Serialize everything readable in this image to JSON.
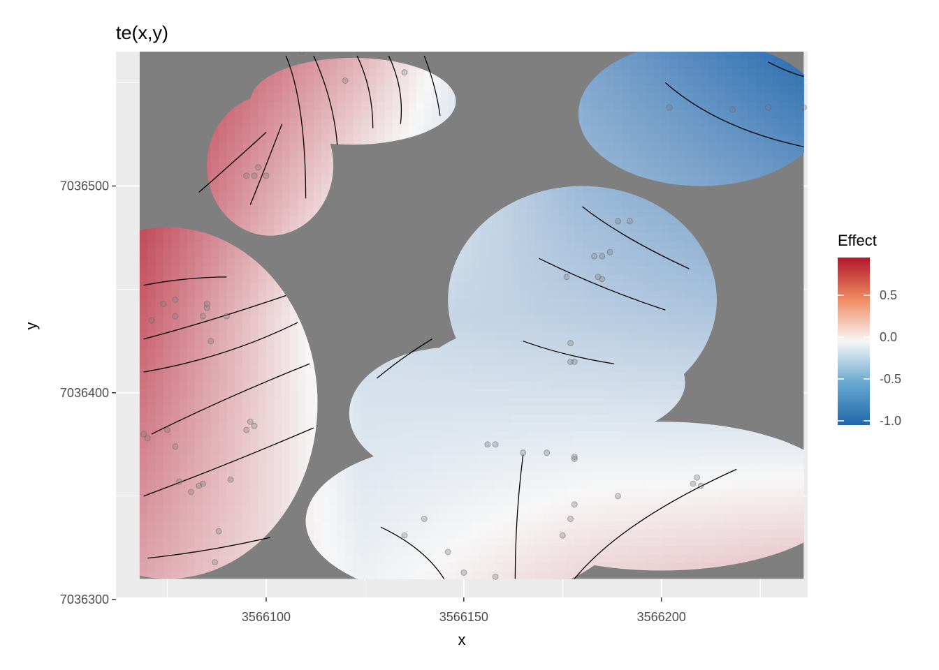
{
  "chart_data": {
    "type": "heatmap",
    "title": "te(x,y)",
    "xlabel": "x",
    "ylabel": "y",
    "xlim": [
      3566062,
      3566237
    ],
    "ylim": [
      7036301,
      7036565
    ],
    "x_ticks": [
      3566100,
      3566150,
      3566200
    ],
    "x_tick_labels": [
      "3566100",
      "3566150",
      "3566200"
    ],
    "y_ticks": [
      7036300,
      7036400,
      7036500
    ],
    "y_tick_labels": [
      "7036300",
      "7036400",
      "7036500"
    ],
    "grid": true,
    "legend": {
      "title": "Effect",
      "placement": "right",
      "range": [
        -1.05,
        0.95
      ],
      "ticks": [
        0.5,
        0.0,
        -0.5,
        -1.0
      ],
      "tick_labels": [
        "0.5",
        "0.0",
        "-0.5",
        "-1.0"
      ]
    },
    "colors": {
      "panel_background": "#ebebeb",
      "grid_major": "#ffffff",
      "masked_area": "#7f7f7f",
      "low": "#2166ac",
      "mid": "#f7f7f7",
      "high": "#b2182b"
    },
    "effect_gradient": {
      "x": [
        3566068,
        3566236
      ],
      "y": [
        7036310,
        7036565
      ],
      "values": [
        [
          0.35,
          -0.05,
          0.15,
          0.25
        ],
        [
          0.65,
          -0.2,
          -0.3,
          -0.4
        ],
        [
          0.9,
          0.3,
          -0.6,
          -1.0
        ]
      ]
    },
    "data_regions": [
      {
        "name": "top-left",
        "cx": 3566101,
        "cy": 7036510,
        "rx": 16,
        "ry": 34
      },
      {
        "name": "top-center",
        "cx": 3566122,
        "cy": 7036541,
        "rx": 26,
        "ry": 21
      },
      {
        "name": "top-right",
        "cx": 3566210,
        "cy": 7036535,
        "rx": 31,
        "ry": 35
      },
      {
        "name": "mid-right",
        "cx": 3566180,
        "cy": 7036445,
        "rx": 34,
        "ry": 55
      },
      {
        "name": "lower-mid",
        "cx": 3566172,
        "cy": 7036405,
        "rx": 34,
        "ry": 30
      },
      {
        "name": "left",
        "cx": 3566075,
        "cy": 7036395,
        "rx": 38,
        "ry": 85
      },
      {
        "name": "center-blob",
        "cx": 3566147,
        "cy": 7036390,
        "rx": 26,
        "ry": 32
      },
      {
        "name": "bottom-center",
        "cx": 3566150,
        "cy": 7036338,
        "rx": 40,
        "ry": 38
      },
      {
        "name": "bottom-right",
        "cx": 3566200,
        "cy": 7036350,
        "rx": 46,
        "ry": 36
      }
    ],
    "contours": [
      [
        [
          3566083,
          7036497
        ],
        [
          3566092,
          7036512
        ],
        [
          3566100,
          7036526
        ]
      ],
      [
        [
          3566096,
          7036491
        ],
        [
          3566100,
          7036510
        ],
        [
          3566104,
          7036530
        ]
      ],
      [
        [
          3566110,
          7036494
        ],
        [
          3566110,
          7036540
        ],
        [
          3566105,
          7036563
        ]
      ],
      [
        [
          3566118,
          7036520
        ],
        [
          3566117,
          7036542
        ],
        [
          3566112,
          7036563
        ]
      ],
      [
        [
          3566127,
          7036528
        ],
        [
          3566127,
          7036547
        ],
        [
          3566123,
          7036563
        ]
      ],
      [
        [
          3566134,
          7036530
        ],
        [
          3566135,
          7036547
        ],
        [
          3566131,
          7036563
        ]
      ],
      [
        [
          3566144,
          7036534
        ],
        [
          3566143,
          7036548
        ],
        [
          3566140,
          7036563
        ]
      ],
      [
        [
          3566069,
          7036452
        ],
        [
          3566080,
          7036456
        ],
        [
          3566090,
          7036456
        ]
      ],
      [
        [
          3566069,
          7036426
        ],
        [
          3566085,
          7036434
        ],
        [
          3566105,
          7036447
        ]
      ],
      [
        [
          3566069,
          7036410
        ],
        [
          3566090,
          7036417
        ],
        [
          3566108,
          7036434
        ]
      ],
      [
        [
          3566071,
          7036380
        ],
        [
          3566090,
          7036398
        ],
        [
          3566111,
          7036414
        ]
      ],
      [
        [
          3566069,
          7036350
        ],
        [
          3566090,
          7036365
        ],
        [
          3566112,
          7036383
        ]
      ],
      [
        [
          3566070,
          7036320
        ],
        [
          3566085,
          7036323
        ],
        [
          3566101,
          7036330
        ]
      ],
      [
        [
          3566128,
          7036407
        ],
        [
          3566135,
          7036418
        ],
        [
          3566142,
          7036426
        ]
      ],
      [
        [
          3566165,
          7036425
        ],
        [
          3566175,
          7036418
        ],
        [
          3566188,
          7036414
        ]
      ],
      [
        [
          3566169,
          7036465
        ],
        [
          3566185,
          7036450
        ],
        [
          3566201,
          7036440
        ]
      ],
      [
        [
          3566180,
          7036490
        ],
        [
          3566190,
          7036475
        ],
        [
          3566207,
          7036460
        ]
      ],
      [
        [
          3566201,
          7036550
        ],
        [
          3566214,
          7036528
        ],
        [
          3566236,
          7036519
        ]
      ],
      [
        [
          3566227,
          7036560
        ],
        [
          3566232,
          7036555
        ],
        [
          3566236,
          7036553
        ]
      ],
      [
        [
          3566165,
          7036370
        ],
        [
          3566163,
          7036340
        ],
        [
          3566163,
          7036310
        ]
      ],
      [
        [
          3566178,
          7036310
        ],
        [
          3566190,
          7036338
        ],
        [
          3566219,
          7036363
        ]
      ],
      [
        [
          3566129,
          7036335
        ],
        [
          3566140,
          7036325
        ],
        [
          3566145,
          7036310
        ]
      ]
    ],
    "points": {
      "x": [
        3566109,
        3566120,
        3566135,
        3566095,
        3566097,
        3566098,
        3566100,
        3566071,
        3566074,
        3566077,
        3566077,
        3566085,
        3566085,
        3566084,
        3566086,
        3566090,
        3566069,
        3566070,
        3566075,
        3566077,
        3566078,
        3566081,
        3566083,
        3566084,
        3566087,
        3566088,
        3566091,
        3566095,
        3566097,
        3566096,
        3566140,
        3566156,
        3566158,
        3566165,
        3566171,
        3566178,
        3566178,
        3566177,
        3566178,
        3566175,
        3566189,
        3566176,
        3566185,
        3566187,
        3566189,
        3566192,
        3566184,
        3566185,
        3566183,
        3566177,
        3566177,
        3566178,
        3566202,
        3566218,
        3566227,
        3566236,
        3566209,
        3566210,
        3566208,
        3566135,
        3566146,
        3566150,
        3566158
      ],
      "y": [
        7036565,
        7036551,
        7036555,
        7036505,
        7036505,
        7036509,
        7036505,
        7036435,
        7036443,
        7036437,
        7036445,
        7036443,
        7036441,
        7036437,
        7036425,
        7036437,
        7036380,
        7036378,
        7036382,
        7036374,
        7036357,
        7036352,
        7036355,
        7036356,
        7036318,
        7036333,
        7036358,
        7036382,
        7036384,
        7036386,
        7036339,
        7036375,
        7036375,
        7036371,
        7036371,
        7036369,
        7036368,
        7036339,
        7036346,
        7036331,
        7036350,
        7036456,
        7036455,
        7036468,
        7036483,
        7036483,
        7036456,
        7036466,
        7036466,
        7036424,
        7036415,
        7036415,
        7036538,
        7036537,
        7036538,
        7036538,
        7036359,
        7036355,
        7036356,
        7036331,
        7036323,
        7036313,
        7036311
      ]
    }
  }
}
